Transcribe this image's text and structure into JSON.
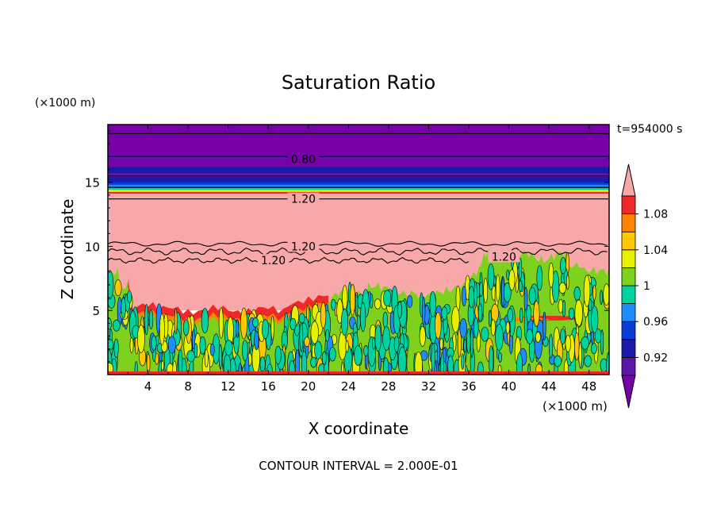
{
  "chart_data": {
    "type": "heatmap",
    "title": "Saturation Ratio",
    "xlabel": "X coordinate",
    "ylabel": "Z coordinate",
    "x_unit": "(×1000 m)",
    "y_unit": "(×1000 m)",
    "time_label": "t=954000 s",
    "footer": "CONTOUR INTERVAL = 2.000E-01",
    "xlim": [
      0,
      50
    ],
    "ylim": [
      0,
      19.5
    ],
    "x_ticks": [
      4,
      8,
      12,
      16,
      20,
      24,
      28,
      32,
      36,
      40,
      44,
      48
    ],
    "y_ticks": [
      5,
      10,
      15
    ],
    "colorbar": {
      "levels": [
        0.9,
        0.92,
        0.94,
        0.96,
        0.98,
        1.0,
        1.02,
        1.04,
        1.06,
        1.08,
        1.1
      ],
      "colors": [
        "#5e16a8",
        "#1a1aa8",
        "#0a3cd8",
        "#1e8cff",
        "#00d2a0",
        "#7ed21e",
        "#e6f000",
        "#ffc800",
        "#ff8200",
        "#f02828"
      ],
      "under_color": "#7800a8",
      "over_color": "#f8a8a8",
      "tick_labels": [
        "0.92",
        "0.96",
        "1",
        "1.04",
        "1.08"
      ],
      "tick_values": [
        0.92,
        0.96,
        1.0,
        1.04,
        1.08
      ]
    },
    "contour_labels": [
      {
        "text": "0.80",
        "x": 19.5,
        "z": 16.8
      },
      {
        "text": "1.20",
        "x": 19.5,
        "z": 13.7
      },
      {
        "text": "1.20",
        "x": 19.5,
        "z": 10.0
      },
      {
        "text": "1.20",
        "x": 16.5,
        "z": 8.9
      },
      {
        "text": "1.20",
        "x": 39.5,
        "z": 9.2
      }
    ],
    "layers": [
      {
        "name": "upper",
        "z_from": 14.8,
        "z_to": 19.5,
        "color": "#7800a8"
      },
      {
        "name": "band-dark",
        "z_from": 15.7,
        "z_to": 16.2,
        "color": "#1a1aa8"
      },
      {
        "name": "transition",
        "z_from": 14.2,
        "z_to": 14.8,
        "color": "#00d2a0"
      },
      {
        "name": "supersaturated",
        "z_from": 5.0,
        "z_to": 14.2,
        "color": "#f8a8a8"
      },
      {
        "name": "boundary-layer",
        "z_from": 0.0,
        "z_to": 6.0,
        "color": "#7ed21e"
      }
    ]
  }
}
